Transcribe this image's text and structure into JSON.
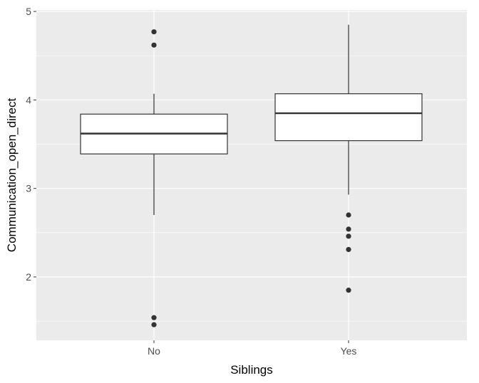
{
  "chart_data": {
    "type": "boxplot",
    "xlabel": "Siblings",
    "ylabel": "Communication_open_direct",
    "ylim": [
      1.33,
      5.0
    ],
    "yticks": [
      2,
      3,
      4,
      5
    ],
    "grid": true,
    "categories": [
      "No",
      "Yes"
    ],
    "boxes": [
      {
        "category": "No",
        "whisker_low": 2.7,
        "q1": 3.39,
        "median": 3.62,
        "q3": 3.84,
        "whisker_high": 4.07,
        "outliers": [
          4.77,
          4.62,
          1.54,
          1.46
        ]
      },
      {
        "category": "Yes",
        "whisker_low": 2.93,
        "q1": 3.54,
        "median": 3.85,
        "q3": 4.07,
        "whisker_high": 4.85,
        "outliers": [
          2.7,
          2.54,
          2.46,
          2.31,
          1.85
        ]
      }
    ],
    "colors": {
      "panel": "#ebebeb",
      "grid": "#ffffff",
      "box_fill": "#ffffff",
      "line": "#333333",
      "point": "#333333"
    }
  }
}
